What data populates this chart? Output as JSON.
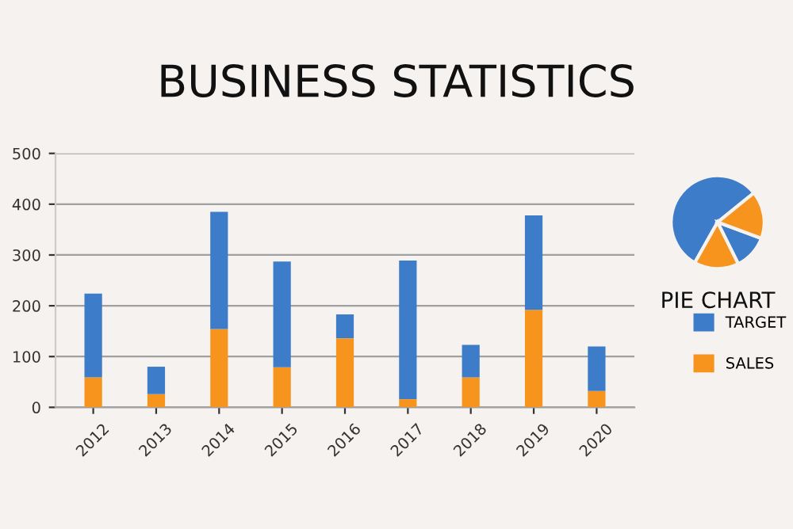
{
  "chart_data": [
    {
      "type": "bar",
      "title": "BUSINESS STATISTICS",
      "categories": [
        "2012",
        "2013",
        "2014",
        "2015",
        "2016",
        "2017",
        "2018",
        "2019",
        "2020"
      ],
      "stacked": true,
      "series": [
        {
          "name": "SALES",
          "color": "#f7941d",
          "values": [
            59,
            26,
            154,
            79,
            136,
            16,
            59,
            192,
            32
          ]
        },
        {
          "name": "TARGET",
          "color": "#3d7cc9",
          "values": [
            165,
            54,
            231,
            208,
            47,
            273,
            64,
            186,
            88
          ]
        }
      ],
      "ylim": [
        0,
        500
      ],
      "yticks": [
        0,
        100,
        200,
        300,
        400,
        500
      ],
      "grid": "y",
      "legend": "right"
    },
    {
      "type": "pie",
      "title": "PIE CHART",
      "categories": [
        null,
        null,
        null,
        null
      ],
      "values": [
        56,
        15.5,
        12,
        16.5
      ],
      "colors": [
        "#3d7cc9",
        "#f7941d",
        "#3d7cc9",
        "#f7941d"
      ]
    }
  ]
}
